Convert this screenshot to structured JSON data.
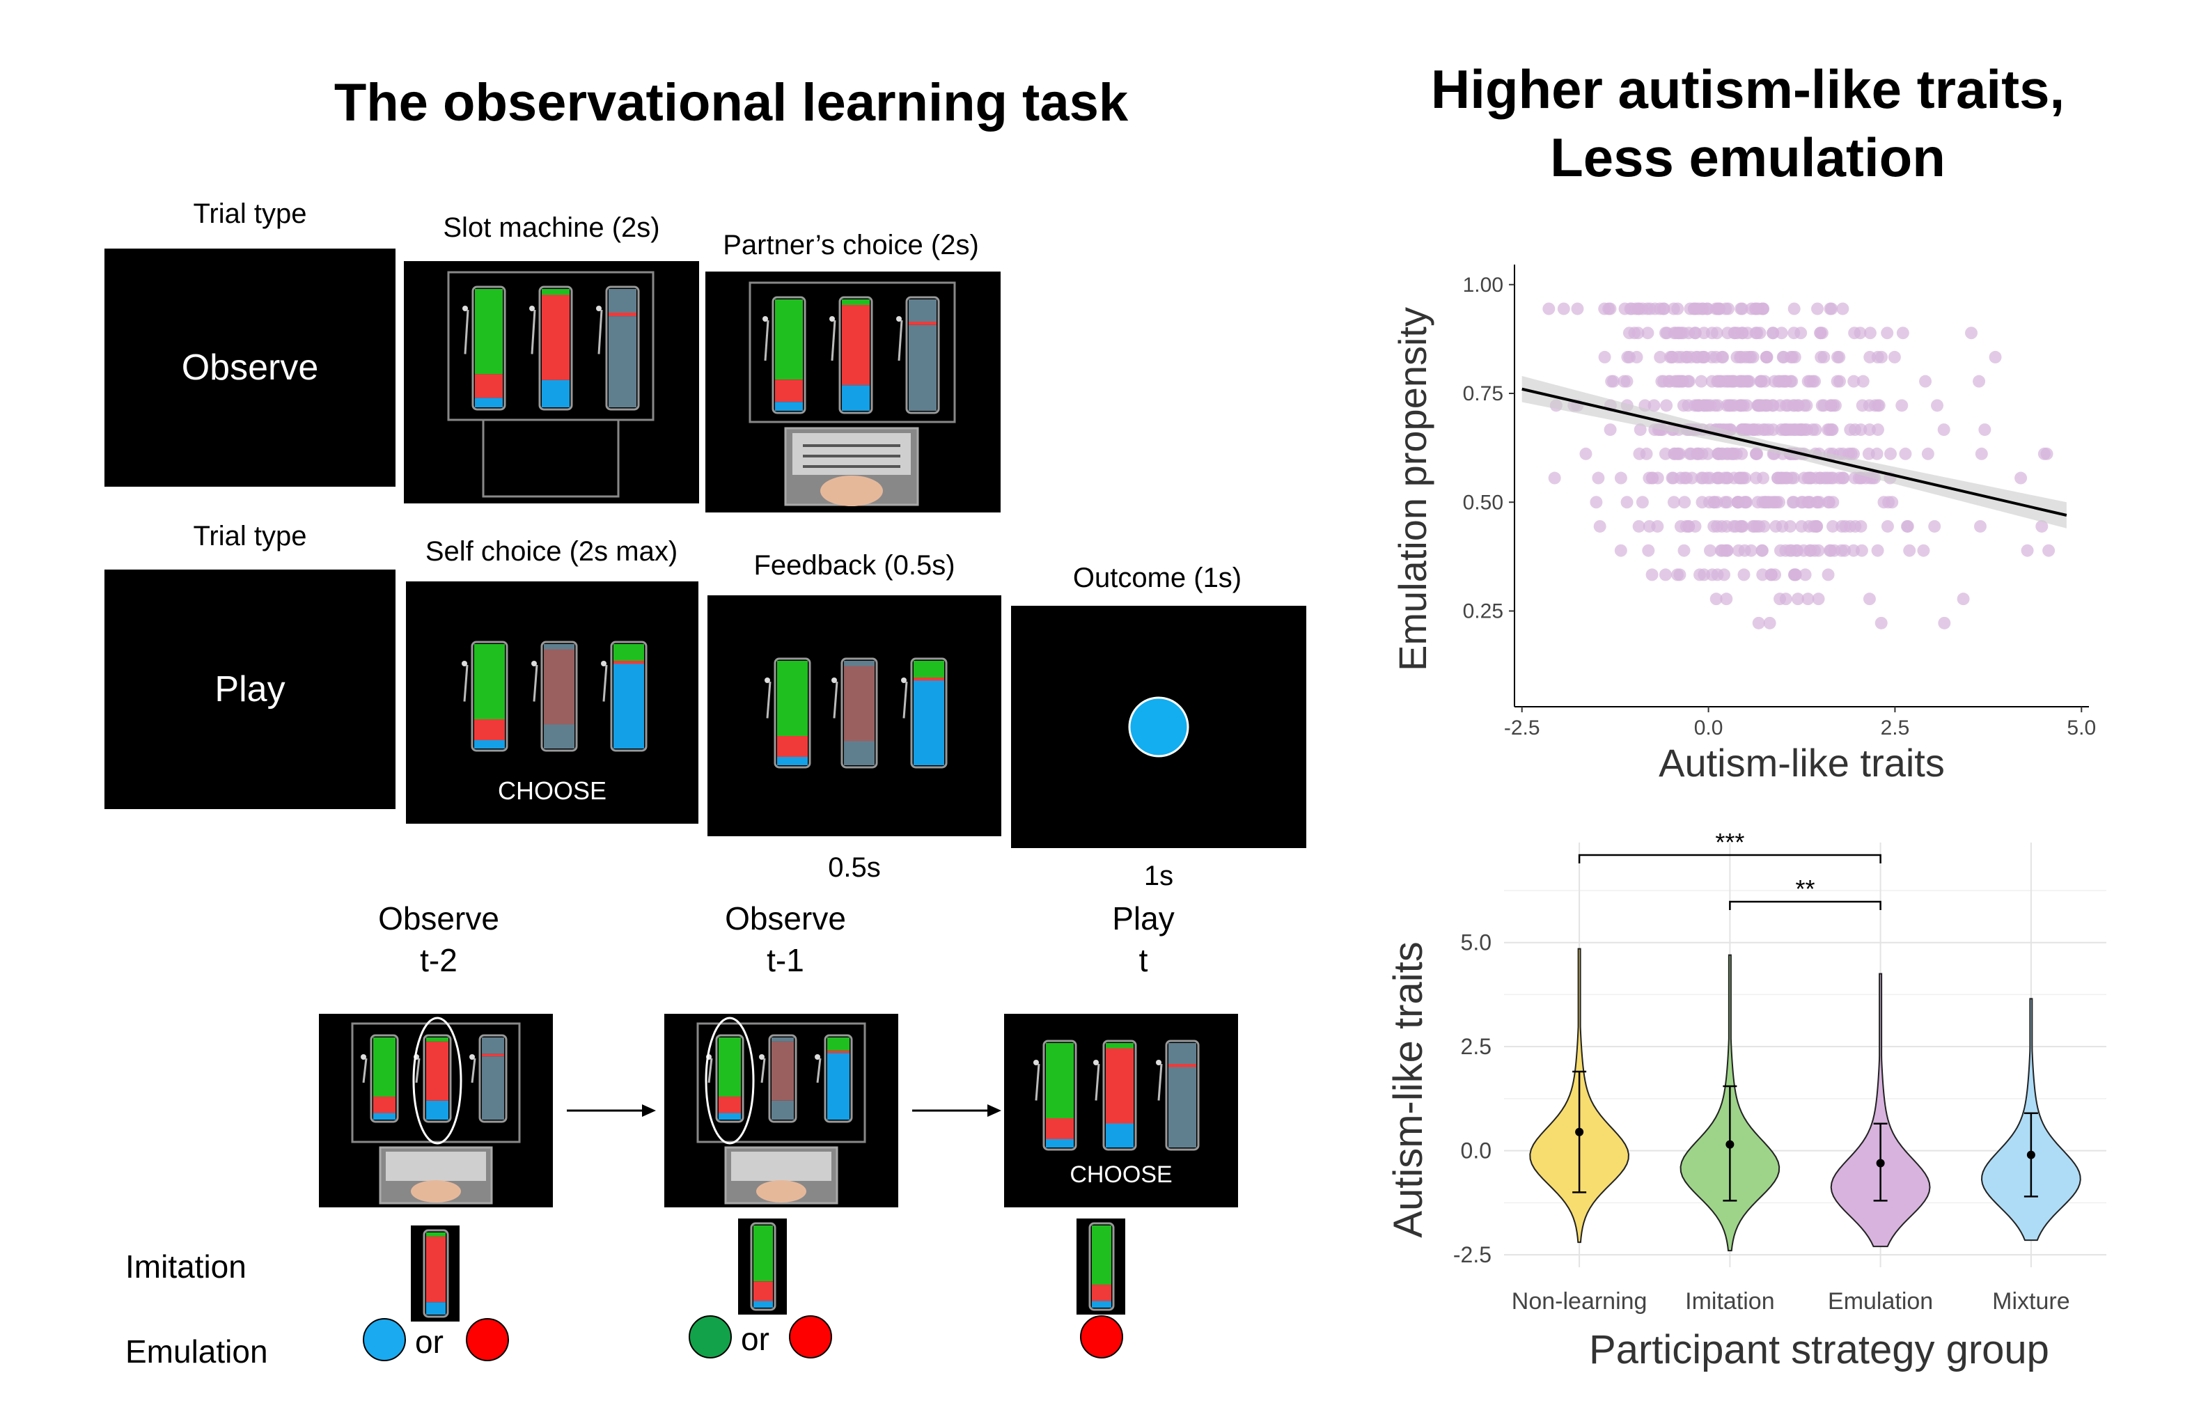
{
  "left": {
    "title": "The observational learning task",
    "row1": {
      "trial_type_label": "Trial type",
      "trial_type_value": "Observe",
      "slot_label": "Slot machine (2s)",
      "partner_label": "Partner’s choice (2s)"
    },
    "row2": {
      "trial_type_label": "Trial type",
      "trial_type_value": "Play",
      "self_label": "Self choice (2s max)",
      "feedback_label": "Feedback (0.5s)",
      "outcome_label": "Outcome (1s)",
      "choose_text": "CHOOSE",
      "feedback_time": "0.5s",
      "outcome_time": "1s"
    },
    "sequence": {
      "step1": "Observe\nt-2",
      "step2": "Observe\nt-1",
      "step3": "Play\nt",
      "choose_text": "CHOOSE",
      "imitation_label": "Imitation",
      "emulation_label": "Emulation",
      "or_text": "or"
    },
    "colors": {
      "green": "#1fbf1f",
      "red": "#f03a3a",
      "blue": "#14a0e6",
      "grey": "#5f7f8f",
      "outcome_blue": "#12aef0",
      "emu_green": "#12a24a",
      "emu_red": "#ff0000",
      "emu_blue": "#1aaaf0"
    }
  },
  "right": {
    "title_line1": "Higher autism-like traits,",
    "title_line2": "Less emulation"
  },
  "chart_data": [
    {
      "type": "scatter",
      "xlabel": "Autism-like traits",
      "ylabel": "Emulation propensity",
      "xlim": [
        -2.6,
        5.1
      ],
      "ylim": [
        0.03,
        1.03
      ],
      "xticks": [
        "-2.5",
        "0.0",
        "2.5",
        "5.0"
      ],
      "yticks": [
        "0.25",
        "0.50",
        "0.75",
        "1.00"
      ],
      "point_color": "#d5b3dc",
      "regression": {
        "x": [
          -2.5,
          4.8
        ],
        "y": [
          0.76,
          0.47
        ]
      },
      "grid": false
    },
    {
      "type": "violin",
      "xlabel": "Participant strategy group",
      "ylabel": "Autism-like traits",
      "categories": [
        "Non-learning",
        "Imitation",
        "Emulation",
        "Mixture"
      ],
      "colors": [
        "#f7dc6f",
        "#9ed489",
        "#d8b3de",
        "#aedcf7"
      ],
      "means": [
        0.45,
        0.15,
        -0.3,
        -0.1
      ],
      "errors_low": [
        -1.0,
        -1.2,
        -1.2,
        -1.1
      ],
      "errors_high": [
        1.9,
        1.55,
        0.65,
        0.9
      ],
      "ranges": [
        [
          -2.2,
          4.85
        ],
        [
          -2.4,
          4.7
        ],
        [
          -2.3,
          4.25
        ],
        [
          -2.15,
          3.65
        ]
      ],
      "ylim": [
        -2.8,
        6.4
      ],
      "yticks": [
        "-2.5",
        "0.0",
        "2.5",
        "5.0"
      ],
      "significance": [
        {
          "from": "Non-learning",
          "to": "Emulation",
          "label": "***"
        },
        {
          "from": "Imitation",
          "to": "Emulation",
          "label": "**"
        }
      ],
      "grid": true
    }
  ]
}
